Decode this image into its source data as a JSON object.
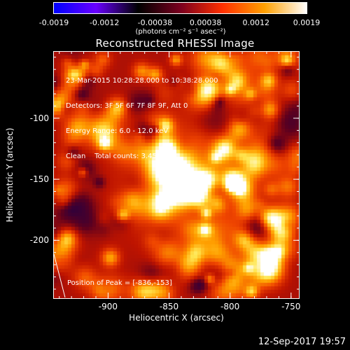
{
  "colorbar": {
    "tick_labels": [
      "-0.0019",
      "-0.0012",
      "-0.00038",
      "0.00038",
      "0.0012",
      "0.0019"
    ],
    "units": "(photons cm⁻² s⁻¹ asec⁻²)",
    "range": [
      -0.0019,
      0.0019
    ],
    "colors": [
      "#0000ff",
      "#6a00ff",
      "#000000",
      "#7a0020",
      "#ff3000",
      "#ffa000",
      "#ffffff"
    ]
  },
  "image": {
    "title": "Reconstructed RHESSI Image",
    "info_lines": [
      "23-Mar-2015 10:28:28.000 to 10:38:28.000",
      "Detectors: 3F 5F 6F 7F 8F 9F, Att 0",
      "Energy Range: 6.0 - 12.0 keV",
      "Clean    Total counts: 3.45E+04"
    ],
    "peak_label": "Position of Peak = [-836,-153]"
  },
  "chart_data": {
    "type": "heatmap",
    "xlabel": "Heliocentric X (arcsec)",
    "ylabel": "Heliocentric Y (arcsec)",
    "xlim": [
      -945,
      -743
    ],
    "ylim": [
      -248,
      -45
    ],
    "x_ticks": [
      -900,
      -850,
      -800,
      -750
    ],
    "x_tick_labels": [
      "-900",
      "-850",
      "-800",
      "-750"
    ],
    "y_ticks": [
      -100,
      -150,
      -200
    ],
    "y_tick_labels": [
      "-100",
      "-150",
      "-200"
    ],
    "peak": [
      -836,
      -153
    ]
  },
  "footer": {
    "timestamp": "12-Sep-2017 19:57"
  }
}
